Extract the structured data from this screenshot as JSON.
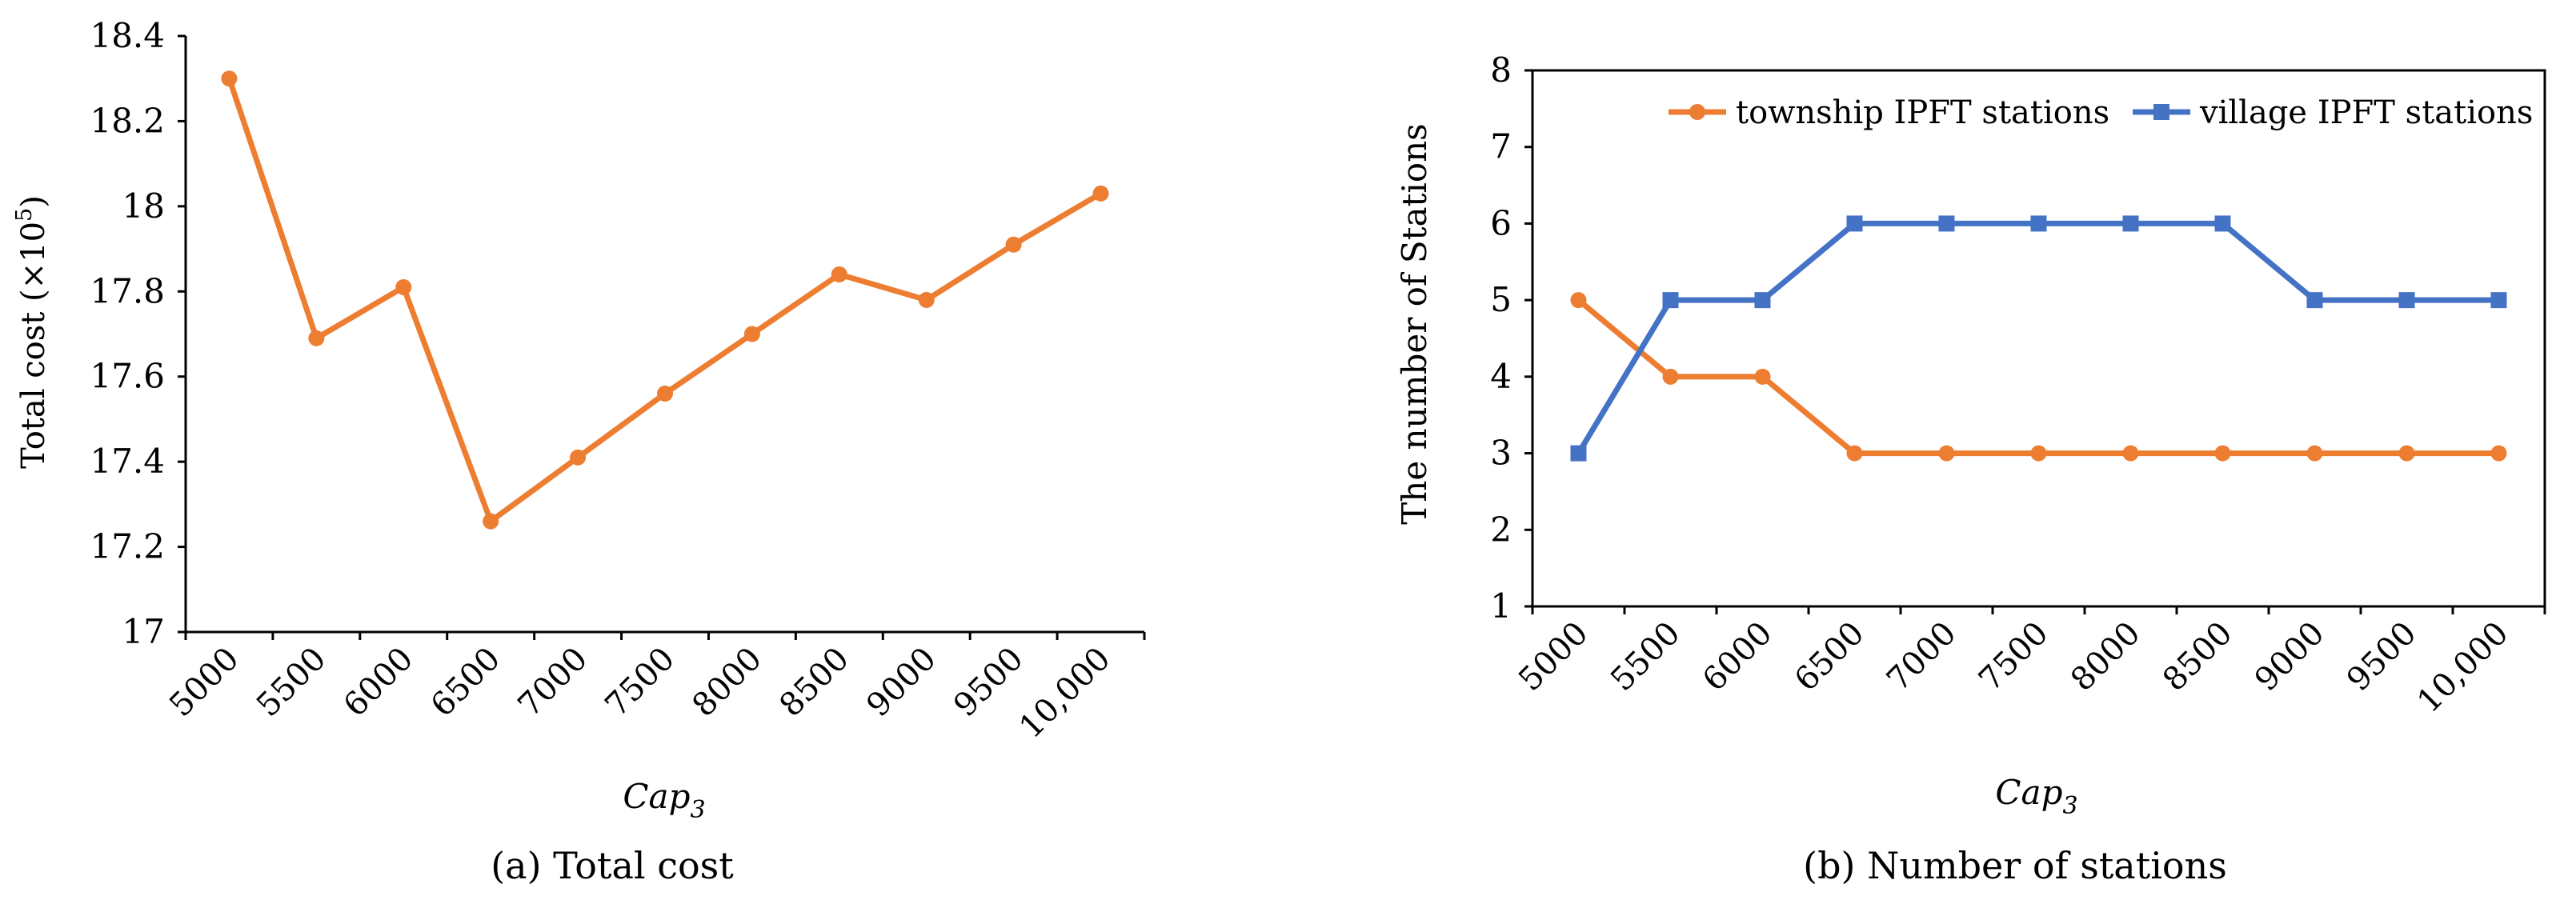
{
  "chart_data": [
    {
      "type": "line",
      "categories": [
        "5000",
        "5500",
        "6000",
        "6500",
        "7000",
        "7500",
        "8000",
        "8500",
        "9000",
        "9500",
        "10,000"
      ],
      "series": [
        {
          "values": [
            18.3,
            17.69,
            17.81,
            17.26,
            17.41,
            17.56,
            17.7,
            17.84,
            17.78,
            17.91,
            18.03
          ],
          "color": "#ED7D31",
          "marker": "circle"
        }
      ],
      "ylabel_main": "Total cost (×10",
      "ylabel_sup": "5",
      "ylabel_end": ")",
      "xlabel_main": "Cap",
      "xlabel_sub": "3",
      "ylim": [
        17,
        18.4
      ],
      "yticks": [
        "17",
        "17.2",
        "17.4",
        "17.6",
        "17.8",
        "18",
        "18.2",
        "18.4"
      ],
      "caption": "(a) Total cost",
      "grid": false
    },
    {
      "type": "line",
      "categories": [
        "5000",
        "5500",
        "6000",
        "6500",
        "7000",
        "7500",
        "8000",
        "8500",
        "9000",
        "9500",
        "10,000"
      ],
      "series": [
        {
          "name": "township IPFT stations",
          "values": [
            5,
            4,
            4,
            3,
            3,
            3,
            3,
            3,
            3,
            3,
            3
          ],
          "color": "#ED7D31",
          "marker": "circle"
        },
        {
          "name": "village IPFT stations",
          "values": [
            3,
            5,
            5,
            6,
            6,
            6,
            6,
            6,
            5,
            5,
            5
          ],
          "color": "#4472C4",
          "marker": "square"
        }
      ],
      "ylabel": "The number  of Stations",
      "xlabel_main": "Cap",
      "xlabel_sub": "3",
      "ylim": [
        1,
        8
      ],
      "yticks": [
        "1",
        "2",
        "3",
        "4",
        "5",
        "6",
        "7",
        "8"
      ],
      "legend": "top-right",
      "caption": "(b) Number of stations",
      "grid": false
    }
  ]
}
